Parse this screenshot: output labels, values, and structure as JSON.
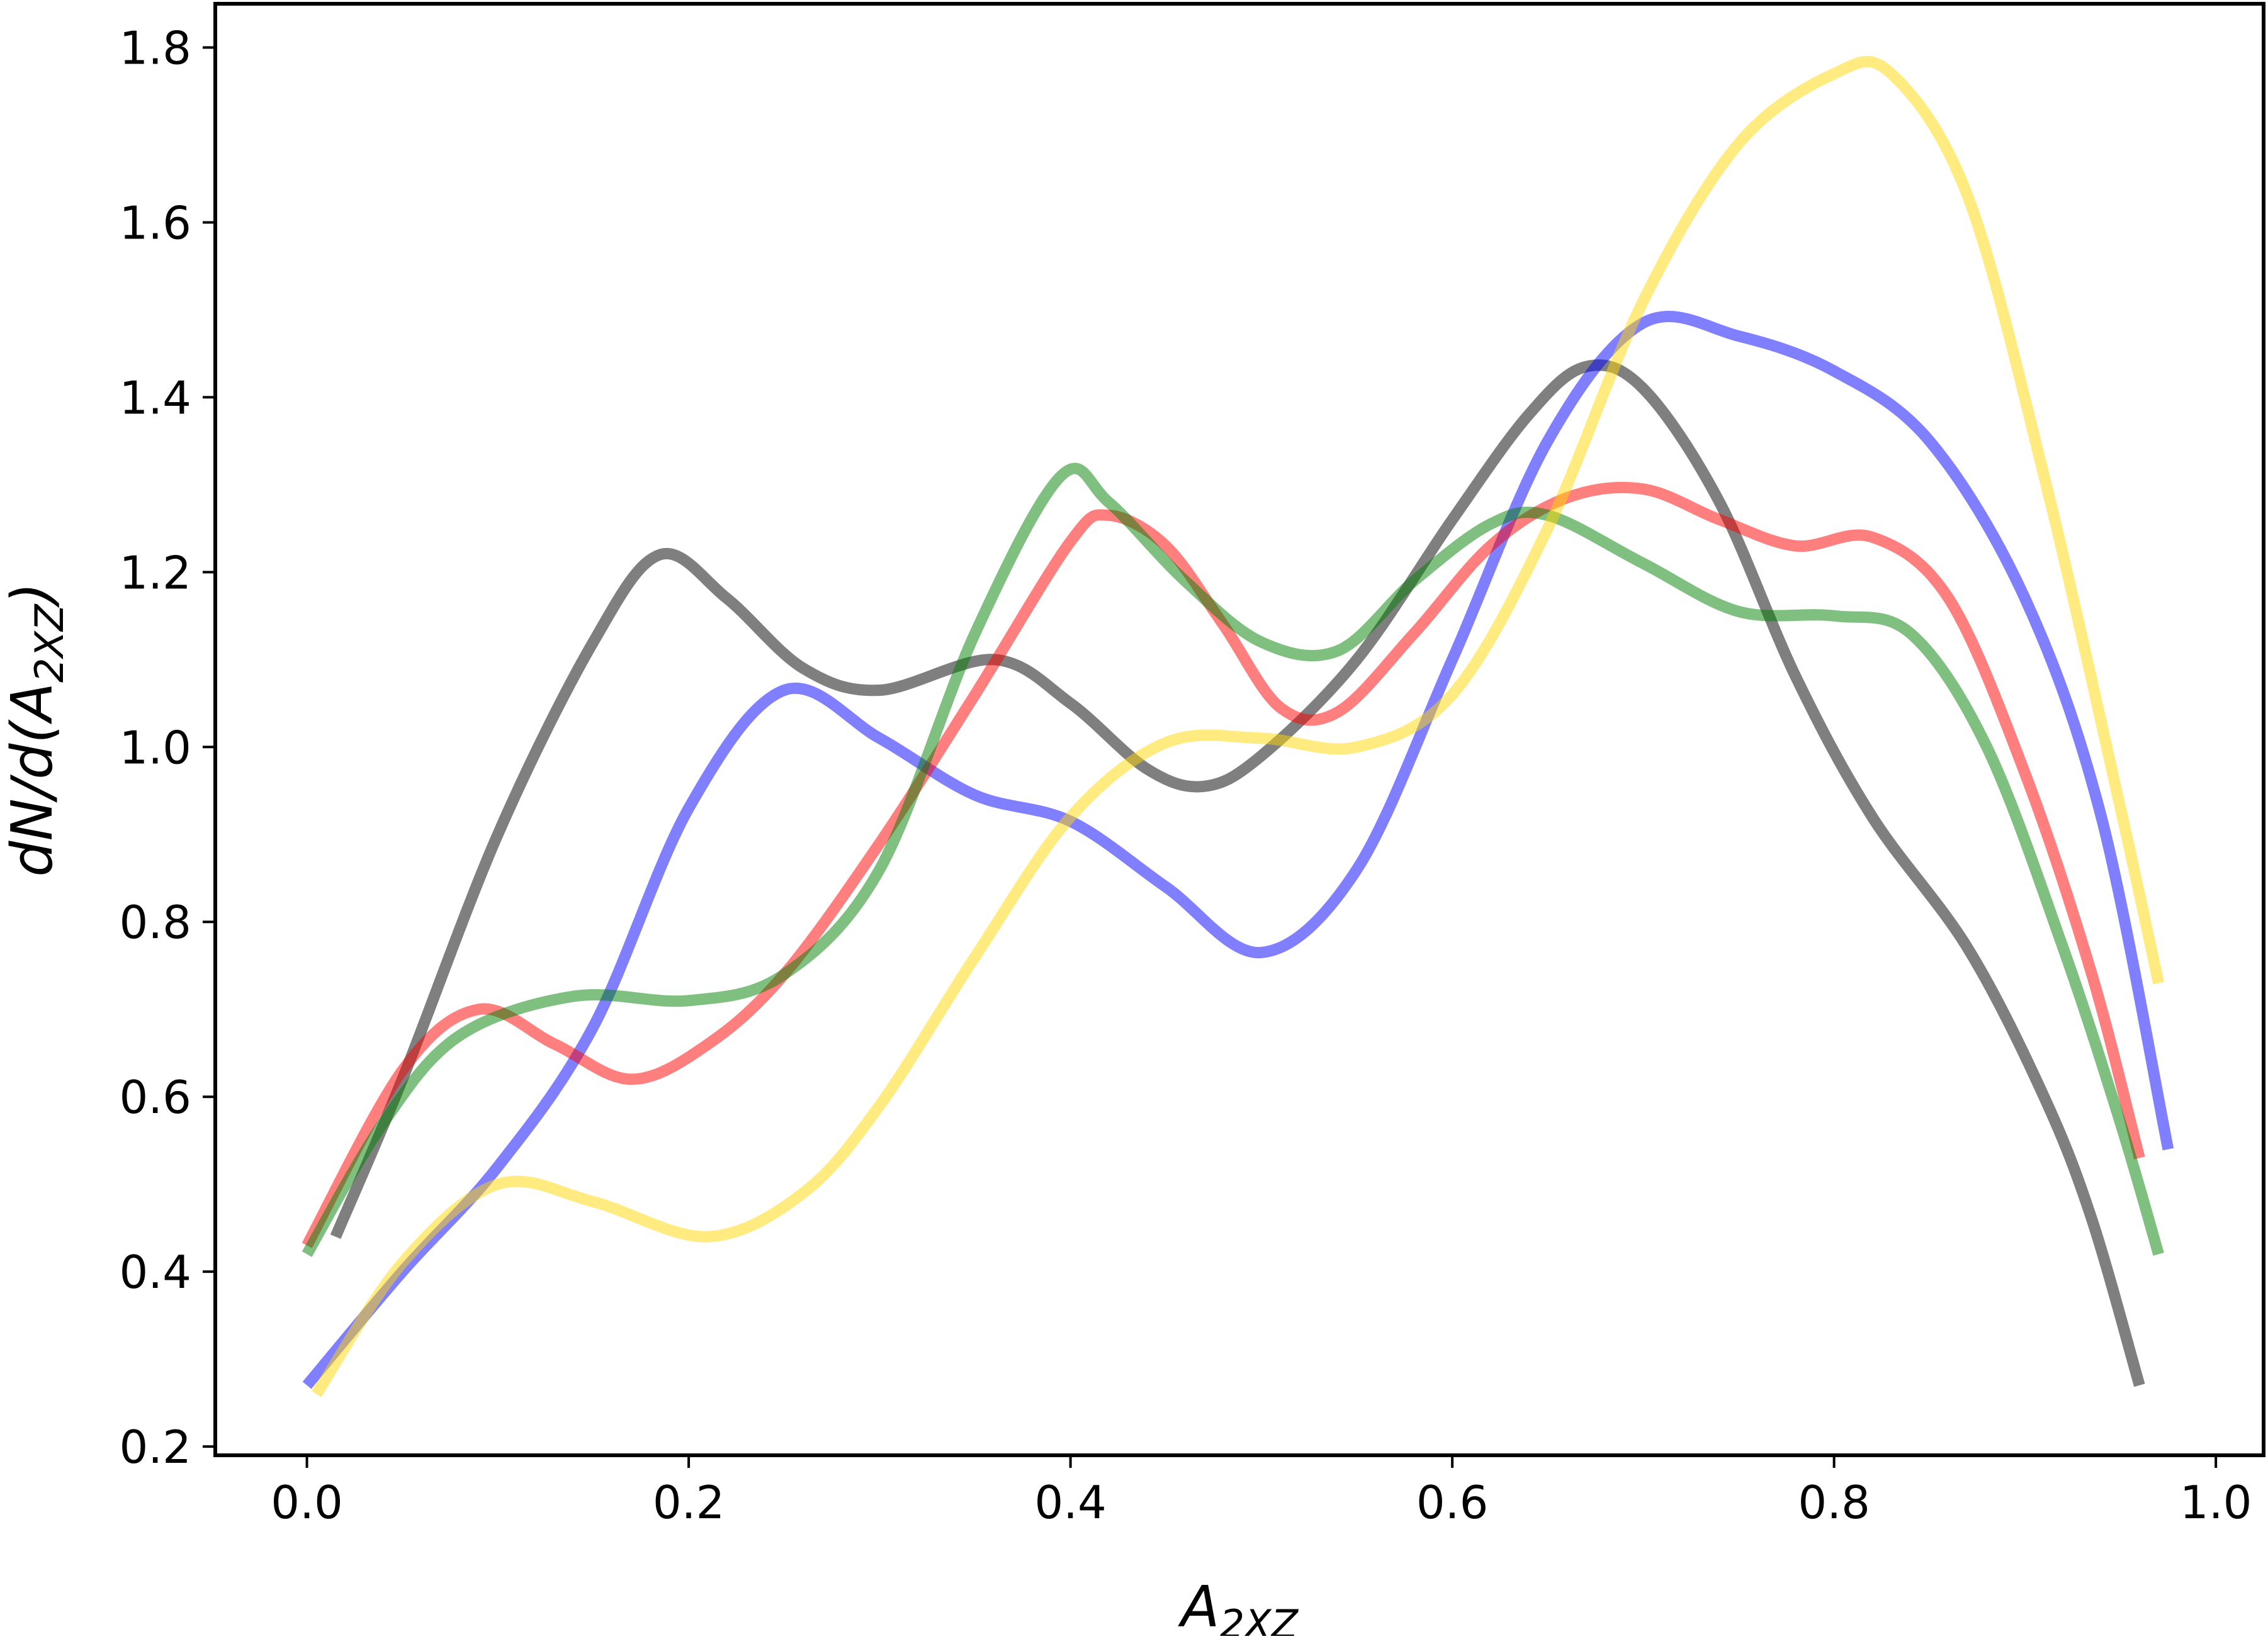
{
  "chart_data": {
    "type": "line",
    "title": "",
    "xlabel": "A",
    "xlabel_sub": "2XZ",
    "ylabel": "dN/d(A",
    "ylabel_sub": "2XZ",
    "ylabel_close": ")",
    "xlim": [
      -0.048,
      1.025
    ],
    "ylim": [
      0.19,
      1.85
    ],
    "xticks": [
      0.0,
      0.2,
      0.4,
      0.6,
      0.8,
      1.0
    ],
    "xtick_labels": [
      "0.0",
      "0.2",
      "0.4",
      "0.6",
      "0.8",
      "1.0"
    ],
    "yticks": [
      0.2,
      0.4,
      0.6,
      0.8,
      1.0,
      1.2,
      1.4,
      1.6,
      1.8
    ],
    "ytick_labels": [
      "0.2",
      "0.4",
      "0.6",
      "0.8",
      "1.0",
      "1.2",
      "1.4",
      "1.6",
      "1.8"
    ],
    "grid": false,
    "legend": "none",
    "series": [
      {
        "color": "#000000",
        "opacity": 0.5,
        "points": [
          [
            0.015,
            0.44
          ],
          [
            0.05,
            0.62
          ],
          [
            0.1,
            0.9
          ],
          [
            0.15,
            1.12
          ],
          [
            0.185,
            1.22
          ],
          [
            0.22,
            1.17
          ],
          [
            0.26,
            1.09
          ],
          [
            0.3,
            1.065
          ],
          [
            0.36,
            1.1
          ],
          [
            0.4,
            1.05
          ],
          [
            0.44,
            0.975
          ],
          [
            0.47,
            0.955
          ],
          [
            0.5,
            0.99
          ],
          [
            0.55,
            1.1
          ],
          [
            0.6,
            1.26
          ],
          [
            0.64,
            1.38
          ],
          [
            0.67,
            1.435
          ],
          [
            0.7,
            1.41
          ],
          [
            0.74,
            1.28
          ],
          [
            0.78,
            1.08
          ],
          [
            0.82,
            0.92
          ],
          [
            0.87,
            0.77
          ],
          [
            0.91,
            0.6
          ],
          [
            0.935,
            0.46
          ],
          [
            0.96,
            0.27
          ]
        ]
      },
      {
        "color": "#0000ff",
        "opacity": 0.5,
        "points": [
          [
            0.0,
            0.27
          ],
          [
            0.05,
            0.4
          ],
          [
            0.1,
            0.52
          ],
          [
            0.15,
            0.68
          ],
          [
            0.2,
            0.93
          ],
          [
            0.25,
            1.065
          ],
          [
            0.3,
            1.01
          ],
          [
            0.35,
            0.945
          ],
          [
            0.4,
            0.915
          ],
          [
            0.45,
            0.84
          ],
          [
            0.5,
            0.765
          ],
          [
            0.55,
            0.86
          ],
          [
            0.6,
            1.1
          ],
          [
            0.65,
            1.35
          ],
          [
            0.7,
            1.485
          ],
          [
            0.75,
            1.47
          ],
          [
            0.8,
            1.43
          ],
          [
            0.85,
            1.35
          ],
          [
            0.9,
            1.17
          ],
          [
            0.94,
            0.92
          ],
          [
            0.975,
            0.54
          ]
        ]
      },
      {
        "color": "#ff0000",
        "opacity": 0.5,
        "points": [
          [
            0.0,
            0.43
          ],
          [
            0.05,
            0.63
          ],
          [
            0.09,
            0.7
          ],
          [
            0.13,
            0.66
          ],
          [
            0.17,
            0.62
          ],
          [
            0.21,
            0.66
          ],
          [
            0.25,
            0.74
          ],
          [
            0.3,
            0.89
          ],
          [
            0.35,
            1.06
          ],
          [
            0.4,
            1.235
          ],
          [
            0.42,
            1.265
          ],
          [
            0.45,
            1.23
          ],
          [
            0.48,
            1.14
          ],
          [
            0.51,
            1.045
          ],
          [
            0.54,
            1.04
          ],
          [
            0.58,
            1.13
          ],
          [
            0.62,
            1.23
          ],
          [
            0.66,
            1.285
          ],
          [
            0.7,
            1.295
          ],
          [
            0.74,
            1.26
          ],
          [
            0.78,
            1.23
          ],
          [
            0.82,
            1.24
          ],
          [
            0.86,
            1.17
          ],
          [
            0.9,
            0.97
          ],
          [
            0.935,
            0.74
          ],
          [
            0.96,
            0.53
          ]
        ]
      },
      {
        "color": "#008000",
        "opacity": 0.5,
        "points": [
          [
            0.0,
            0.42
          ],
          [
            0.04,
            0.57
          ],
          [
            0.08,
            0.67
          ],
          [
            0.14,
            0.715
          ],
          [
            0.2,
            0.71
          ],
          [
            0.25,
            0.74
          ],
          [
            0.3,
            0.86
          ],
          [
            0.35,
            1.13
          ],
          [
            0.395,
            1.31
          ],
          [
            0.42,
            1.28
          ],
          [
            0.46,
            1.19
          ],
          [
            0.5,
            1.12
          ],
          [
            0.54,
            1.11
          ],
          [
            0.58,
            1.19
          ],
          [
            0.62,
            1.255
          ],
          [
            0.65,
            1.265
          ],
          [
            0.7,
            1.21
          ],
          [
            0.75,
            1.155
          ],
          [
            0.8,
            1.15
          ],
          [
            0.84,
            1.13
          ],
          [
            0.88,
            1.0
          ],
          [
            0.92,
            0.77
          ],
          [
            0.95,
            0.57
          ],
          [
            0.97,
            0.42
          ]
        ]
      },
      {
        "color": "#ffd700",
        "opacity": 0.5,
        "points": [
          [
            0.005,
            0.26
          ],
          [
            0.05,
            0.41
          ],
          [
            0.1,
            0.5
          ],
          [
            0.15,
            0.48
          ],
          [
            0.21,
            0.44
          ],
          [
            0.26,
            0.49
          ],
          [
            0.3,
            0.59
          ],
          [
            0.35,
            0.76
          ],
          [
            0.4,
            0.92
          ],
          [
            0.45,
            1.005
          ],
          [
            0.5,
            1.01
          ],
          [
            0.55,
            1.0
          ],
          [
            0.6,
            1.06
          ],
          [
            0.65,
            1.25
          ],
          [
            0.7,
            1.51
          ],
          [
            0.75,
            1.69
          ],
          [
            0.8,
            1.77
          ],
          [
            0.83,
            1.77
          ],
          [
            0.87,
            1.63
          ],
          [
            0.91,
            1.31
          ],
          [
            0.95,
            0.93
          ],
          [
            0.97,
            0.73
          ]
        ]
      }
    ]
  }
}
